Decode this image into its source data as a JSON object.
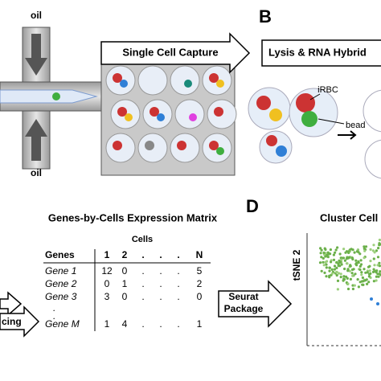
{
  "panel_a": {
    "oil_top": "oil",
    "oil_bottom": "oil",
    "capture_arrow": "Single Cell Capture"
  },
  "panel_b": {
    "label": "B",
    "arrow": "Lysis & RNA Hybrid",
    "cell_label": "iRBC",
    "bead_label": "bead"
  },
  "panel_c": {
    "title": "Genes-by-Cells Expression Matrix",
    "cells_header": "Cells",
    "table": {
      "header": [
        "Genes",
        "1",
        "2",
        ".",
        ".",
        ".",
        "N"
      ],
      "rows": [
        [
          "Gene 1",
          12,
          0,
          ".",
          ".",
          ".",
          5
        ],
        [
          "Gene 2",
          0,
          1,
          ".",
          ".",
          ".",
          2
        ],
        [
          "Gene 3",
          3,
          0,
          ".",
          ".",
          ".",
          0
        ],
        [
          "."
        ],
        [
          "."
        ],
        [
          "Gene M",
          1,
          4,
          ".",
          ".",
          ".",
          1
        ]
      ]
    },
    "arrow_left": "cing"
  },
  "panel_d": {
    "label": "D",
    "title": "Cluster Cell",
    "y_axis": "tSNE 2",
    "arrow": [
      "Seurat",
      "Package"
    ]
  }
}
